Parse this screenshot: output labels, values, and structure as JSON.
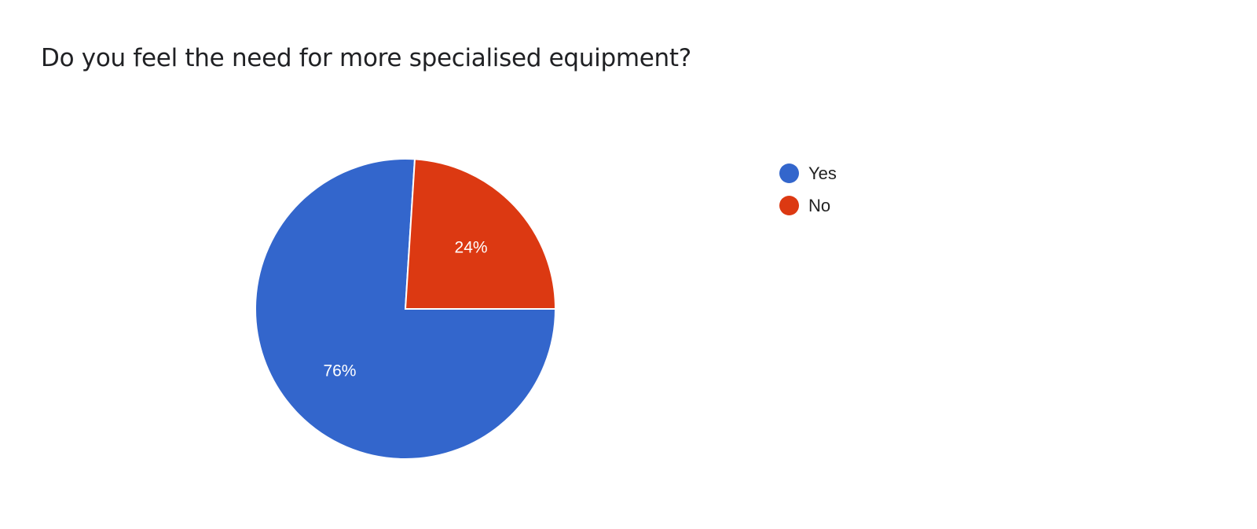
{
  "chart_data": {
    "type": "pie",
    "title": "Do you feel the need for more specialised equipment?",
    "categories": [
      "Yes",
      "No"
    ],
    "values": [
      76,
      24
    ],
    "data_labels": [
      "76%",
      "24%"
    ],
    "colors": [
      "#3366CC",
      "#DC3912"
    ],
    "legend_position": "right"
  }
}
